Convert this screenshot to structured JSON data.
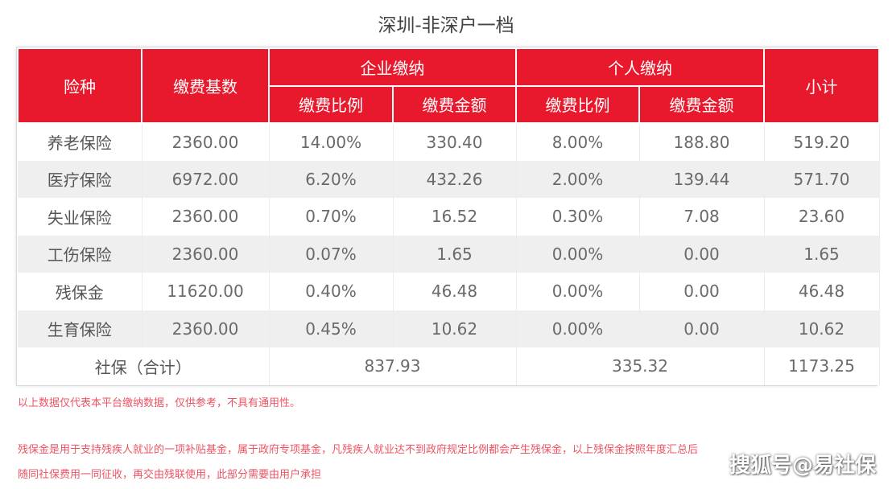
{
  "title": "深圳-非深户一档",
  "header": {
    "col_type": "险种",
    "col_base": "缴费基数",
    "group_company": "企业缴纳",
    "group_personal": "个人缴纳",
    "col_subtotal": "小计",
    "rate": "缴费比例",
    "amount": "缴费金额"
  },
  "rows": [
    {
      "name": "养老保险",
      "base": "2360.00",
      "c_rate": "14.00%",
      "c_amt": "330.40",
      "p_rate": "8.00%",
      "p_amt": "188.80",
      "subtotal": "519.20"
    },
    {
      "name": "医疗保险",
      "base": "6972.00",
      "c_rate": "6.20%",
      "c_amt": "432.26",
      "p_rate": "2.00%",
      "p_amt": "139.44",
      "subtotal": "571.70"
    },
    {
      "name": "失业保险",
      "base": "2360.00",
      "c_rate": "0.70%",
      "c_amt": "16.52",
      "p_rate": "0.30%",
      "p_amt": "7.08",
      "subtotal": "23.60"
    },
    {
      "name": "工伤保险",
      "base": "2360.00",
      "c_rate": "0.07%",
      "c_amt": "1.65",
      "p_rate": "0.00%",
      "p_amt": "0.00",
      "subtotal": "1.65"
    },
    {
      "name": "残保金",
      "base": "11620.00",
      "c_rate": "0.40%",
      "c_amt": "46.48",
      "p_rate": "0.00%",
      "p_amt": "0.00",
      "subtotal": "46.48"
    },
    {
      "name": "生育保险",
      "base": "2360.00",
      "c_rate": "0.45%",
      "c_amt": "10.62",
      "p_rate": "0.00%",
      "p_amt": "0.00",
      "subtotal": "10.62"
    }
  ],
  "total": {
    "label": "社保（合计）",
    "company": "837.93",
    "personal": "335.32",
    "subtotal": "1173.25"
  },
  "notes": {
    "line1": "以上数据仅代表本平台缴纳数据，仅供参考，不具有通用性。",
    "line2": "残保金是用于支持残疾人就业的一项补贴基金，属于政府专项基金，凡残疾人就业达不到政府规定比例都会产生残保金，以上残保金按照年度汇总后",
    "line3": "随同社保费用一同征收，再交由残联使用，此部分需要由用户承担"
  },
  "watermark": {
    "text": "搜狐号@易社保",
    "icon": "at-sign-icon"
  },
  "colors": {
    "header_red": "#e8192c",
    "stripe_gray": "#efefef"
  }
}
